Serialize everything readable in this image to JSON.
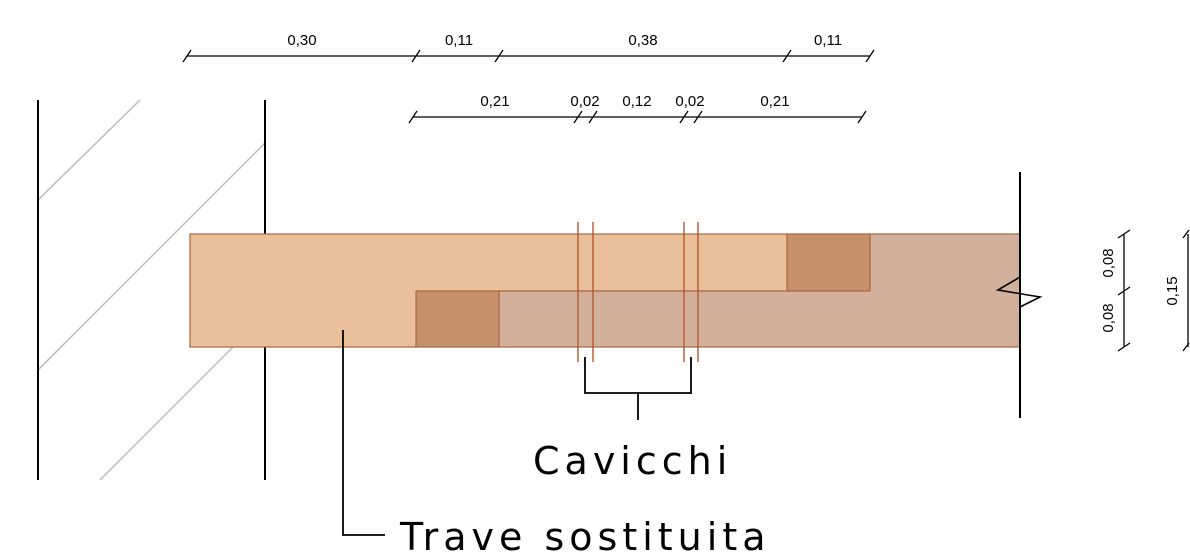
{
  "dimensions": {
    "top_row": [
      "0,30",
      "0,11",
      "0,38",
      "0,11"
    ],
    "second_row": [
      "0,21",
      "0,02",
      "0,12",
      "0,02",
      "0,21"
    ],
    "vertical_pair": [
      "0,08",
      "0,08"
    ],
    "vertical_total": "0,15"
  },
  "labels": {
    "pegs": "Cavicchi",
    "beam": "Trave sostituita"
  },
  "colors": {
    "beam_light": "#eac09b",
    "beam_grey": "#d3b09b",
    "block": "#c5906b",
    "edge": "#a8653d",
    "peg_line": "#b5582f",
    "hatch": "#c0c0c0"
  }
}
